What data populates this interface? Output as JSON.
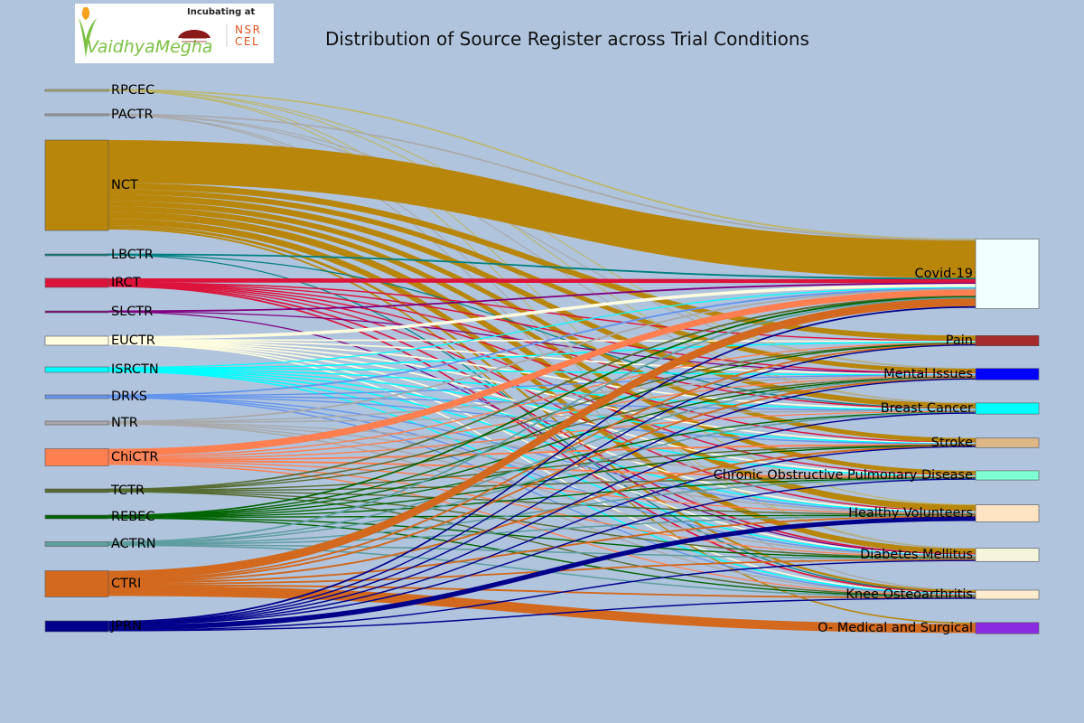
{
  "title": "Distribution of Source Register across Trial Conditions",
  "logo": {
    "brand": "VaidhyaMegha",
    "incubating": "Incubating at",
    "nsrcel_top": "NSR",
    "nsrcel_bottom": "CEL"
  },
  "chart_data": {
    "type": "sankey",
    "title": "Distribution of Source Register across Trial Conditions",
    "sources": [
      {
        "name": "RPCEC",
        "color": "#bdb76b",
        "node": "#bdb76b"
      },
      {
        "name": "PACTR",
        "color": "#a9a9a9",
        "node": "#a9a9a9"
      },
      {
        "name": "NCT",
        "color": "#b8860b",
        "node": "#b8860b"
      },
      {
        "name": "LBCTR",
        "color": "#008080",
        "node": "#008080"
      },
      {
        "name": "IRCT",
        "color": "#dc143c",
        "node": "#dc143c"
      },
      {
        "name": "SLCTR",
        "color": "#800080",
        "node": "#800080"
      },
      {
        "name": "EUCTR",
        "color": "#fffde0",
        "node": "#fffde0"
      },
      {
        "name": "ISRCTN",
        "color": "#00ffff",
        "node": "#00ffff"
      },
      {
        "name": "DRKS",
        "color": "#6495ed",
        "node": "#6495ed"
      },
      {
        "name": "NTR",
        "color": "#a9a9a9",
        "node": "#a9a9a9"
      },
      {
        "name": "ChiCTR",
        "color": "#ff7f50",
        "node": "#ff7f50"
      },
      {
        "name": "TCTR",
        "color": "#556b2f",
        "node": "#556b2f"
      },
      {
        "name": "REBEC",
        "color": "#006400",
        "node": "#006400"
      },
      {
        "name": "ACTRN",
        "color": "#5f9ea0",
        "node": "#5f9ea0"
      },
      {
        "name": "CTRI",
        "color": "#d2691e",
        "node": "#d2691e"
      },
      {
        "name": "JPRN",
        "color": "#00008b",
        "node": "#00008b"
      }
    ],
    "targets": [
      {
        "name": "Covid-19",
        "color": "#f0ffff"
      },
      {
        "name": "Pain",
        "color": "#a52a2a"
      },
      {
        "name": "Mental Issues",
        "color": "#0000ff"
      },
      {
        "name": "Breast Cancer",
        "color": "#00ffff"
      },
      {
        "name": "Stroke",
        "color": "#deb887"
      },
      {
        "name": "Chronic Obstructive Pulmonary Disease",
        "color": "#7fffd4"
      },
      {
        "name": "Healthy Volunteers",
        "color": "#ffe4c4"
      },
      {
        "name": "Diabetes Mellitus",
        "color": "#f5f5dc"
      },
      {
        "name": "Knee Osteoarthritis",
        "color": "#ffebcd"
      },
      {
        "name": "O- Medical and Surgical",
        "color": "#8a2be2"
      }
    ],
    "sources_values": [
      1,
      1,
      100,
      1,
      10,
      1,
      10,
      6,
      4,
      4,
      19,
      4,
      4,
      5,
      29,
      12
    ],
    "flows": [
      [
        0,
        0,
        1
      ],
      [
        0,
        2,
        0.3
      ],
      [
        0,
        3,
        0.3
      ],
      [
        0,
        6,
        0.3
      ],
      [
        0,
        7,
        0.3
      ],
      [
        1,
        0,
        1
      ],
      [
        1,
        2,
        0.3
      ],
      [
        1,
        3,
        0.3
      ],
      [
        1,
        7,
        0.3
      ],
      [
        1,
        8,
        0.3
      ],
      [
        2,
        0,
        48
      ],
      [
        2,
        1,
        7
      ],
      [
        2,
        2,
        6
      ],
      [
        2,
        3,
        7
      ],
      [
        2,
        4,
        6
      ],
      [
        2,
        5,
        6
      ],
      [
        2,
        6,
        8
      ],
      [
        2,
        7,
        7
      ],
      [
        2,
        8,
        3
      ],
      [
        2,
        9,
        2
      ],
      [
        3,
        0,
        1
      ],
      [
        3,
        3,
        0.3
      ],
      [
        3,
        8,
        0.3
      ],
      [
        4,
        0,
        5
      ],
      [
        4,
        1,
        0.5
      ],
      [
        4,
        2,
        0.5
      ],
      [
        4,
        3,
        0.5
      ],
      [
        4,
        4,
        0.5
      ],
      [
        4,
        5,
        0.5
      ],
      [
        4,
        6,
        0.5
      ],
      [
        4,
        7,
        0.8
      ],
      [
        4,
        8,
        0.8
      ],
      [
        5,
        0,
        1
      ],
      [
        5,
        2,
        0.3
      ],
      [
        5,
        7,
        0.3
      ],
      [
        6,
        0,
        4
      ],
      [
        6,
        1,
        0.8
      ],
      [
        6,
        2,
        0.8
      ],
      [
        6,
        3,
        0.8
      ],
      [
        6,
        4,
        0.8
      ],
      [
        6,
        5,
        0.8
      ],
      [
        6,
        6,
        0.8
      ],
      [
        6,
        7,
        0.6
      ],
      [
        6,
        8,
        0.6
      ],
      [
        7,
        0,
        1.5
      ],
      [
        7,
        1,
        0.6
      ],
      [
        7,
        2,
        0.6
      ],
      [
        7,
        3,
        0.6
      ],
      [
        7,
        4,
        0.6
      ],
      [
        7,
        5,
        0.6
      ],
      [
        7,
        6,
        0.6
      ],
      [
        7,
        7,
        0.6
      ],
      [
        7,
        8,
        0.6
      ],
      [
        8,
        0,
        1
      ],
      [
        8,
        2,
        0.5
      ],
      [
        8,
        3,
        0.5
      ],
      [
        8,
        4,
        0.5
      ],
      [
        8,
        6,
        0.5
      ],
      [
        8,
        7,
        0.5
      ],
      [
        8,
        8,
        0.5
      ],
      [
        9,
        0,
        1
      ],
      [
        9,
        2,
        0.5
      ],
      [
        9,
        3,
        0.5
      ],
      [
        9,
        5,
        0.5
      ],
      [
        9,
        6,
        0.5
      ],
      [
        9,
        7,
        0.5
      ],
      [
        9,
        8,
        0.5
      ],
      [
        10,
        0,
        8
      ],
      [
        10,
        1,
        1.5
      ],
      [
        10,
        2,
        1.5
      ],
      [
        10,
        3,
        1.5
      ],
      [
        10,
        4,
        1
      ],
      [
        10,
        5,
        1
      ],
      [
        10,
        6,
        1.5
      ],
      [
        10,
        7,
        1.5
      ],
      [
        10,
        8,
        1.5
      ],
      [
        11,
        0,
        1
      ],
      [
        11,
        1,
        0.5
      ],
      [
        11,
        2,
        0.5
      ],
      [
        11,
        4,
        0.5
      ],
      [
        11,
        5,
        0.5
      ],
      [
        11,
        6,
        0.5
      ],
      [
        11,
        7,
        0.5
      ],
      [
        11,
        8,
        0.5
      ],
      [
        12,
        0,
        1
      ],
      [
        12,
        1,
        0.5
      ],
      [
        12,
        2,
        0.5
      ],
      [
        12,
        3,
        0.5
      ],
      [
        12,
        4,
        0.5
      ],
      [
        12,
        5,
        0.5
      ],
      [
        12,
        6,
        0.5
      ],
      [
        12,
        7,
        0.5
      ],
      [
        12,
        8,
        0.5
      ],
      [
        13,
        0,
        1
      ],
      [
        13,
        2,
        0.6
      ],
      [
        13,
        3,
        0.6
      ],
      [
        13,
        5,
        0.6
      ],
      [
        13,
        6,
        0.6
      ],
      [
        13,
        7,
        0.6
      ],
      [
        13,
        8,
        0.6
      ],
      [
        14,
        0,
        10
      ],
      [
        14,
        1,
        1
      ],
      [
        14,
        2,
        1
      ],
      [
        14,
        4,
        1
      ],
      [
        14,
        6,
        1
      ],
      [
        14,
        7,
        2
      ],
      [
        14,
        8,
        1
      ],
      [
        14,
        9,
        12
      ],
      [
        15,
        0,
        2
      ],
      [
        15,
        1,
        0.5
      ],
      [
        15,
        2,
        0.5
      ],
      [
        15,
        3,
        0.5
      ],
      [
        15,
        4,
        0.5
      ],
      [
        15,
        5,
        0.5
      ],
      [
        15,
        6,
        6
      ],
      [
        15,
        7,
        0.5
      ],
      [
        15,
        8,
        0.5
      ]
    ]
  }
}
